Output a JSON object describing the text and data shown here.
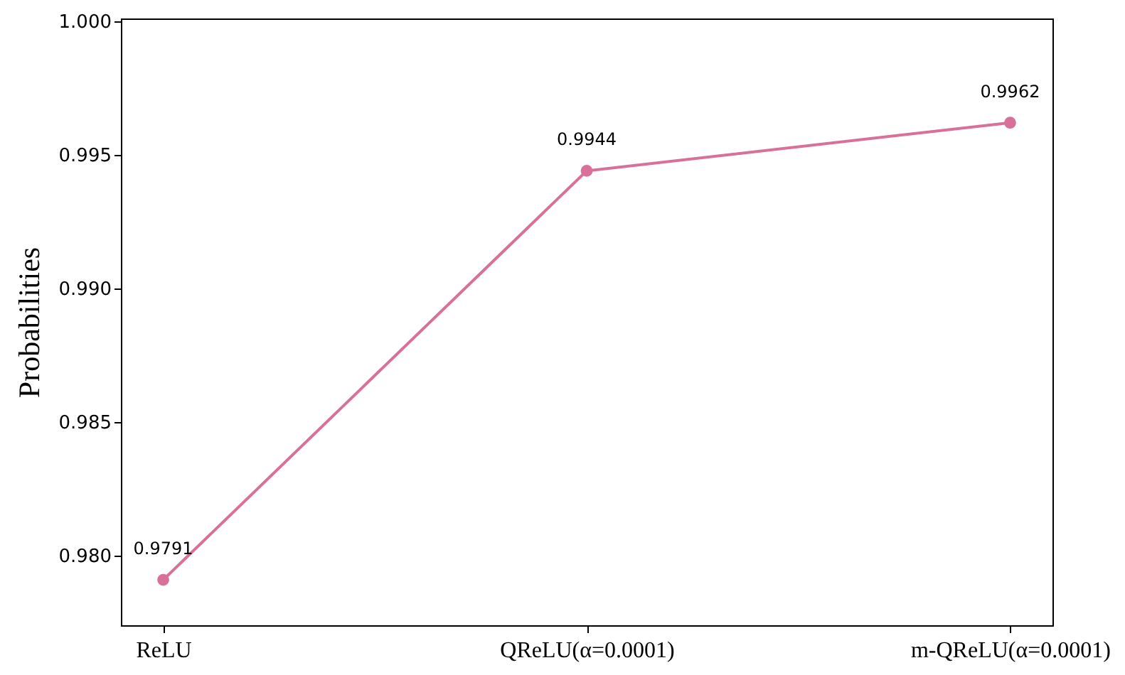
{
  "chart_data": {
    "type": "line",
    "ylabel": "Probabilities",
    "categories": [
      "ReLU",
      "QReLU(α=0.0001)",
      "m-QReLU(α=0.0001)"
    ],
    "series": [
      {
        "color": "#d9709a",
        "values": [
          0.9791,
          0.9944,
          0.9962
        ]
      }
    ],
    "ylim": [
      0.9774,
      1.0001
    ],
    "yticks": [
      {
        "value": 0.98,
        "label": "0.980"
      },
      {
        "value": 0.985,
        "label": "0.985"
      },
      {
        "value": 0.99,
        "label": "0.990"
      },
      {
        "value": 0.995,
        "label": "0.995"
      },
      {
        "value": 1.0,
        "label": "1.000"
      }
    ],
    "grid": false,
    "marker": "circle",
    "data_labels": true
  }
}
